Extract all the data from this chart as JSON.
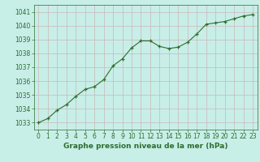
{
  "x": [
    0,
    1,
    2,
    3,
    4,
    5,
    6,
    7,
    8,
    9,
    10,
    11,
    12,
    13,
    14,
    15,
    16,
    17,
    18,
    19,
    20,
    21,
    22,
    23
  ],
  "y": [
    1033.0,
    1033.3,
    1033.9,
    1034.3,
    1034.9,
    1035.4,
    1035.6,
    1036.1,
    1037.1,
    1037.6,
    1038.4,
    1038.9,
    1038.9,
    1038.5,
    1038.35,
    1038.45,
    1038.8,
    1039.4,
    1040.1,
    1040.2,
    1040.3,
    1040.5,
    1040.7,
    1040.8
  ],
  "line_color": "#2d6e2d",
  "marker": "+",
  "marker_size": 3,
  "bg_color": "#c8eee8",
  "grid_color": "#c8b8b8",
  "xlabel": "Graphe pression niveau de la mer (hPa)",
  "xlabel_color": "#2d6e2d",
  "tick_color": "#2d6e2d",
  "ylim": [
    1032.5,
    1041.5
  ],
  "yticks": [
    1033,
    1034,
    1035,
    1036,
    1037,
    1038,
    1039,
    1040,
    1041
  ],
  "xlim": [
    -0.5,
    23.5
  ],
  "xticks": [
    0,
    1,
    2,
    3,
    4,
    5,
    6,
    7,
    8,
    9,
    10,
    11,
    12,
    13,
    14,
    15,
    16,
    17,
    18,
    19,
    20,
    21,
    22,
    23
  ]
}
